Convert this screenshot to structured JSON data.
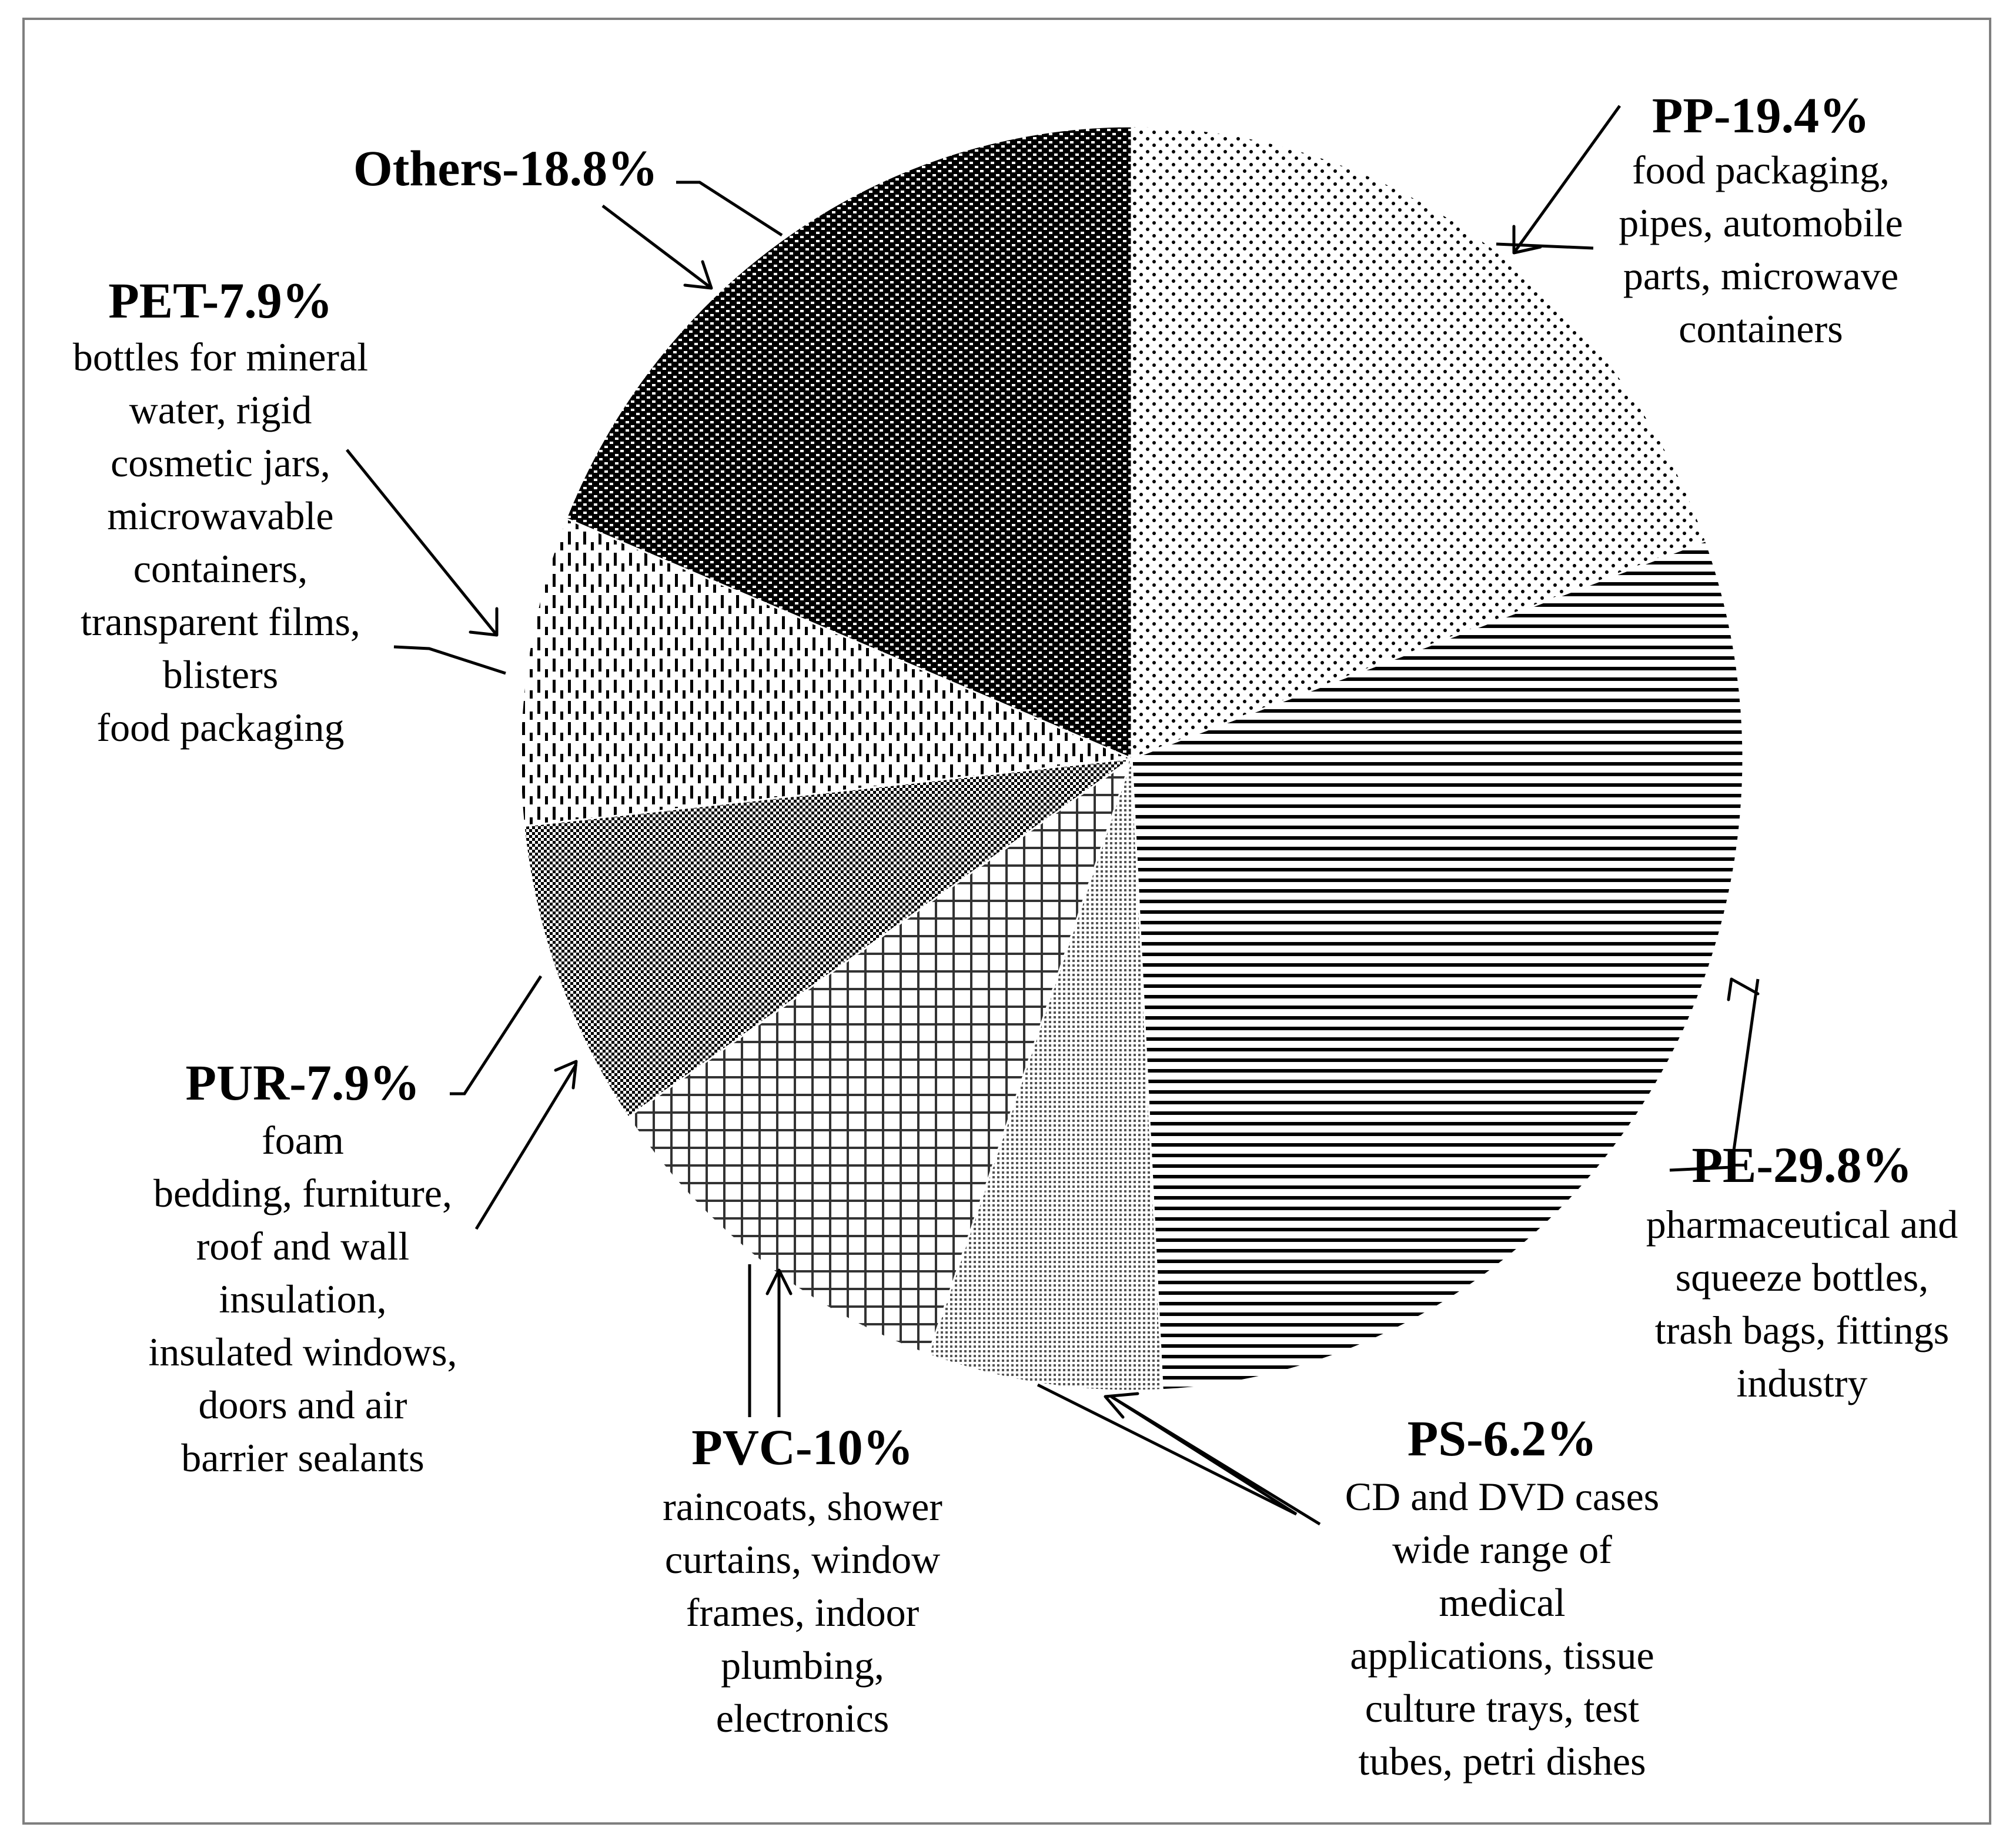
{
  "chart_data": {
    "type": "pie",
    "slices": [
      {
        "key": "pp",
        "name": "PP",
        "label": "PP-19.4%",
        "value": 19.4,
        "description": [
          "food packaging,",
          "pipes, automobile",
          "parts, microwave",
          "containers"
        ]
      },
      {
        "key": "pe",
        "name": "PE",
        "label": "PE-29.8%",
        "value": 29.8,
        "description": [
          "pharmaceutical and",
          "squeeze bottles,",
          "trash bags, fittings",
          "industry"
        ]
      },
      {
        "key": "ps",
        "name": "PS",
        "label": "PS-6.2%",
        "value": 6.2,
        "description": [
          "CD and DVD cases",
          "wide range of",
          "medical",
          "applications, tissue",
          "culture trays, test",
          "tubes, petri dishes"
        ]
      },
      {
        "key": "pvc",
        "name": "PVC",
        "label": "PVC-10%",
        "value": 10,
        "description": [
          "raincoats, shower",
          "curtains, window",
          "frames, indoor",
          "plumbing,",
          "electronics"
        ]
      },
      {
        "key": "pur",
        "name": "PUR",
        "label": "PUR-7.9%",
        "value": 7.9,
        "description": [
          "foam",
          "bedding, furniture,",
          "roof and wall",
          "insulation,",
          "insulated windows,",
          "doors and air",
          "barrier sealants"
        ]
      },
      {
        "key": "pet",
        "name": "PET",
        "label": "PET-7.9%",
        "value": 7.9,
        "description": [
          "bottles for mineral",
          "water, rigid",
          "cosmetic jars,",
          "microwavable",
          "containers,",
          "transparent films,",
          "blisters",
          "food packaging"
        ]
      },
      {
        "key": "others",
        "name": "Others",
        "label": "Others-18.8%",
        "value": 18.8,
        "description": []
      }
    ],
    "start_angle": "12 o'clock",
    "direction": "clockwise",
    "legend": "none (labels with leader arrows)"
  }
}
